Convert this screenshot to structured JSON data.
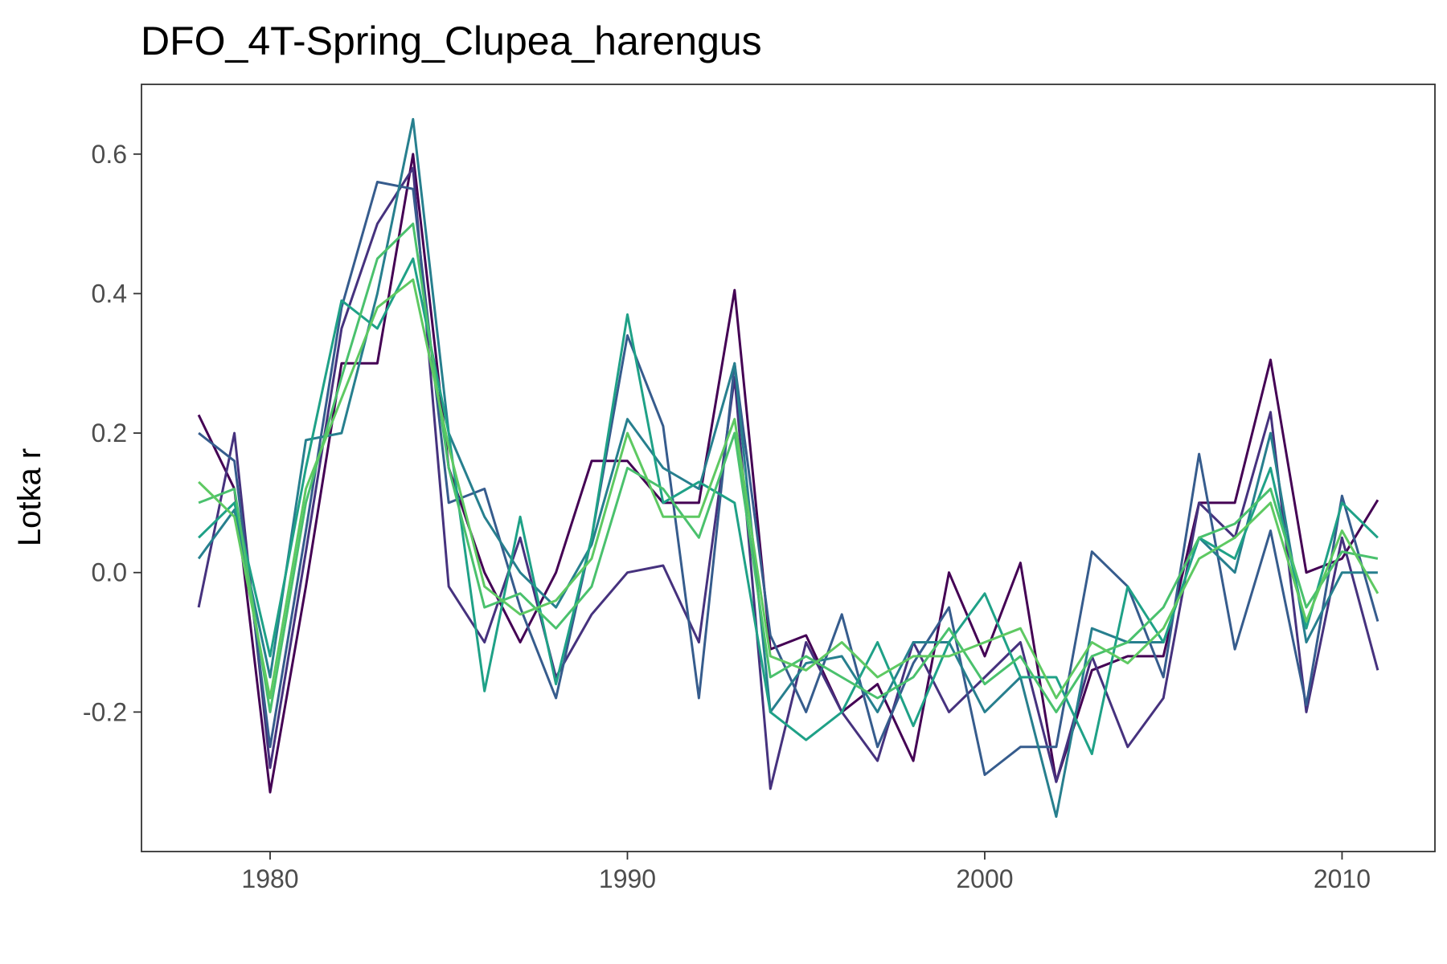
{
  "chart_data": {
    "type": "line",
    "title": "DFO_4T-Spring_Clupea_harengus",
    "xlabel": "",
    "ylabel": "Lotka r",
    "xlim": [
      1976.4,
      2012.6
    ],
    "ylim": [
      -0.4,
      0.7
    ],
    "x_ticks": [
      1980,
      1990,
      2000,
      2010
    ],
    "x_tick_labels": [
      "1980",
      "1990",
      "2000",
      "2010"
    ],
    "y_ticks": [
      -0.2,
      0.0,
      0.2,
      0.4,
      0.6
    ],
    "y_tick_labels": [
      "-0.2",
      "0.0",
      "0.2",
      "0.4",
      "0.6"
    ],
    "grid": false,
    "legend": "none",
    "colors": [
      "#440154",
      "#46327e",
      "#365c8d",
      "#277f8e",
      "#1fa187",
      "#4ac16d",
      "#5ec962"
    ],
    "x": [
      1978,
      1979,
      1980,
      1981,
      1982,
      1983,
      1984,
      1985,
      1986,
      1987,
      1988,
      1989,
      1990,
      1991,
      1992,
      1993,
      1994,
      1995,
      1996,
      1997,
      1998,
      1999,
      2000,
      2001,
      2002,
      2003,
      2004,
      2005,
      2006,
      2007,
      2008,
      2009,
      2010,
      2011
    ],
    "series": [
      {
        "values": [
          0.226,
          0.12,
          -0.315,
          -0.02,
          0.3,
          0.3,
          0.6,
          0.15,
          0.0,
          -0.1,
          0.0,
          0.16,
          0.16,
          0.1,
          0.1,
          0.405,
          -0.11,
          -0.09,
          -0.2,
          -0.16,
          -0.27,
          0.0,
          -0.12,
          0.014,
          -0.3,
          -0.14,
          -0.12,
          -0.12,
          0.1,
          0.1,
          0.305,
          0.0,
          0.02,
          0.104
        ]
      },
      {
        "values": [
          -0.05,
          0.2,
          -0.28,
          0.03,
          0.35,
          0.5,
          0.58,
          -0.02,
          -0.1,
          0.05,
          -0.15,
          -0.06,
          0.0,
          0.01,
          -0.1,
          0.28,
          -0.31,
          -0.1,
          -0.2,
          -0.27,
          -0.1,
          -0.2,
          -0.15,
          -0.1,
          -0.3,
          -0.12,
          -0.25,
          -0.18,
          0.1,
          0.05,
          0.23,
          -0.2,
          0.05,
          -0.14
        ]
      },
      {
        "values": [
          0.2,
          0.16,
          -0.25,
          0.06,
          0.38,
          0.56,
          0.55,
          0.1,
          0.12,
          -0.05,
          -0.18,
          0.05,
          0.34,
          0.21,
          -0.18,
          0.3,
          -0.09,
          -0.2,
          -0.06,
          -0.25,
          -0.13,
          -0.05,
          -0.29,
          -0.25,
          -0.25,
          0.03,
          -0.02,
          -0.15,
          0.17,
          -0.11,
          0.06,
          -0.19,
          0.11,
          -0.07
        ]
      },
      {
        "values": [
          0.02,
          0.09,
          -0.15,
          0.19,
          0.2,
          0.4,
          0.65,
          0.2,
          0.08,
          0.0,
          -0.05,
          0.04,
          0.22,
          0.15,
          0.12,
          0.3,
          -0.2,
          -0.13,
          -0.12,
          -0.2,
          -0.1,
          -0.1,
          -0.2,
          -0.15,
          -0.35,
          -0.08,
          -0.1,
          -0.1,
          0.05,
          0.0,
          0.2,
          -0.1,
          0.0,
          0.0
        ]
      },
      {
        "values": [
          0.05,
          0.1,
          -0.12,
          0.15,
          0.39,
          0.35,
          0.45,
          0.2,
          -0.17,
          0.08,
          -0.16,
          0.05,
          0.37,
          0.1,
          0.13,
          0.1,
          -0.2,
          -0.24,
          -0.2,
          -0.1,
          -0.22,
          -0.1,
          -0.03,
          -0.15,
          -0.15,
          -0.26,
          -0.02,
          -0.1,
          0.05,
          0.02,
          0.15,
          -0.08,
          0.1,
          0.05
        ]
      },
      {
        "values": [
          0.1,
          0.12,
          -0.2,
          0.1,
          0.28,
          0.45,
          0.5,
          0.15,
          -0.05,
          -0.03,
          -0.08,
          -0.02,
          0.15,
          0.12,
          0.05,
          0.2,
          -0.15,
          -0.12,
          -0.15,
          -0.18,
          -0.15,
          -0.08,
          -0.16,
          -0.12,
          -0.2,
          -0.12,
          -0.1,
          -0.05,
          0.05,
          0.07,
          0.12,
          -0.05,
          0.03,
          0.02
        ]
      },
      {
        "values": [
          0.13,
          0.08,
          -0.18,
          0.12,
          0.25,
          0.38,
          0.42,
          0.18,
          -0.02,
          -0.06,
          -0.04,
          0.02,
          0.2,
          0.08,
          0.08,
          0.22,
          -0.12,
          -0.14,
          -0.1,
          -0.15,
          -0.12,
          -0.12,
          -0.1,
          -0.08,
          -0.18,
          -0.1,
          -0.13,
          -0.08,
          0.02,
          0.05,
          0.1,
          -0.07,
          0.06,
          -0.03
        ]
      }
    ]
  }
}
